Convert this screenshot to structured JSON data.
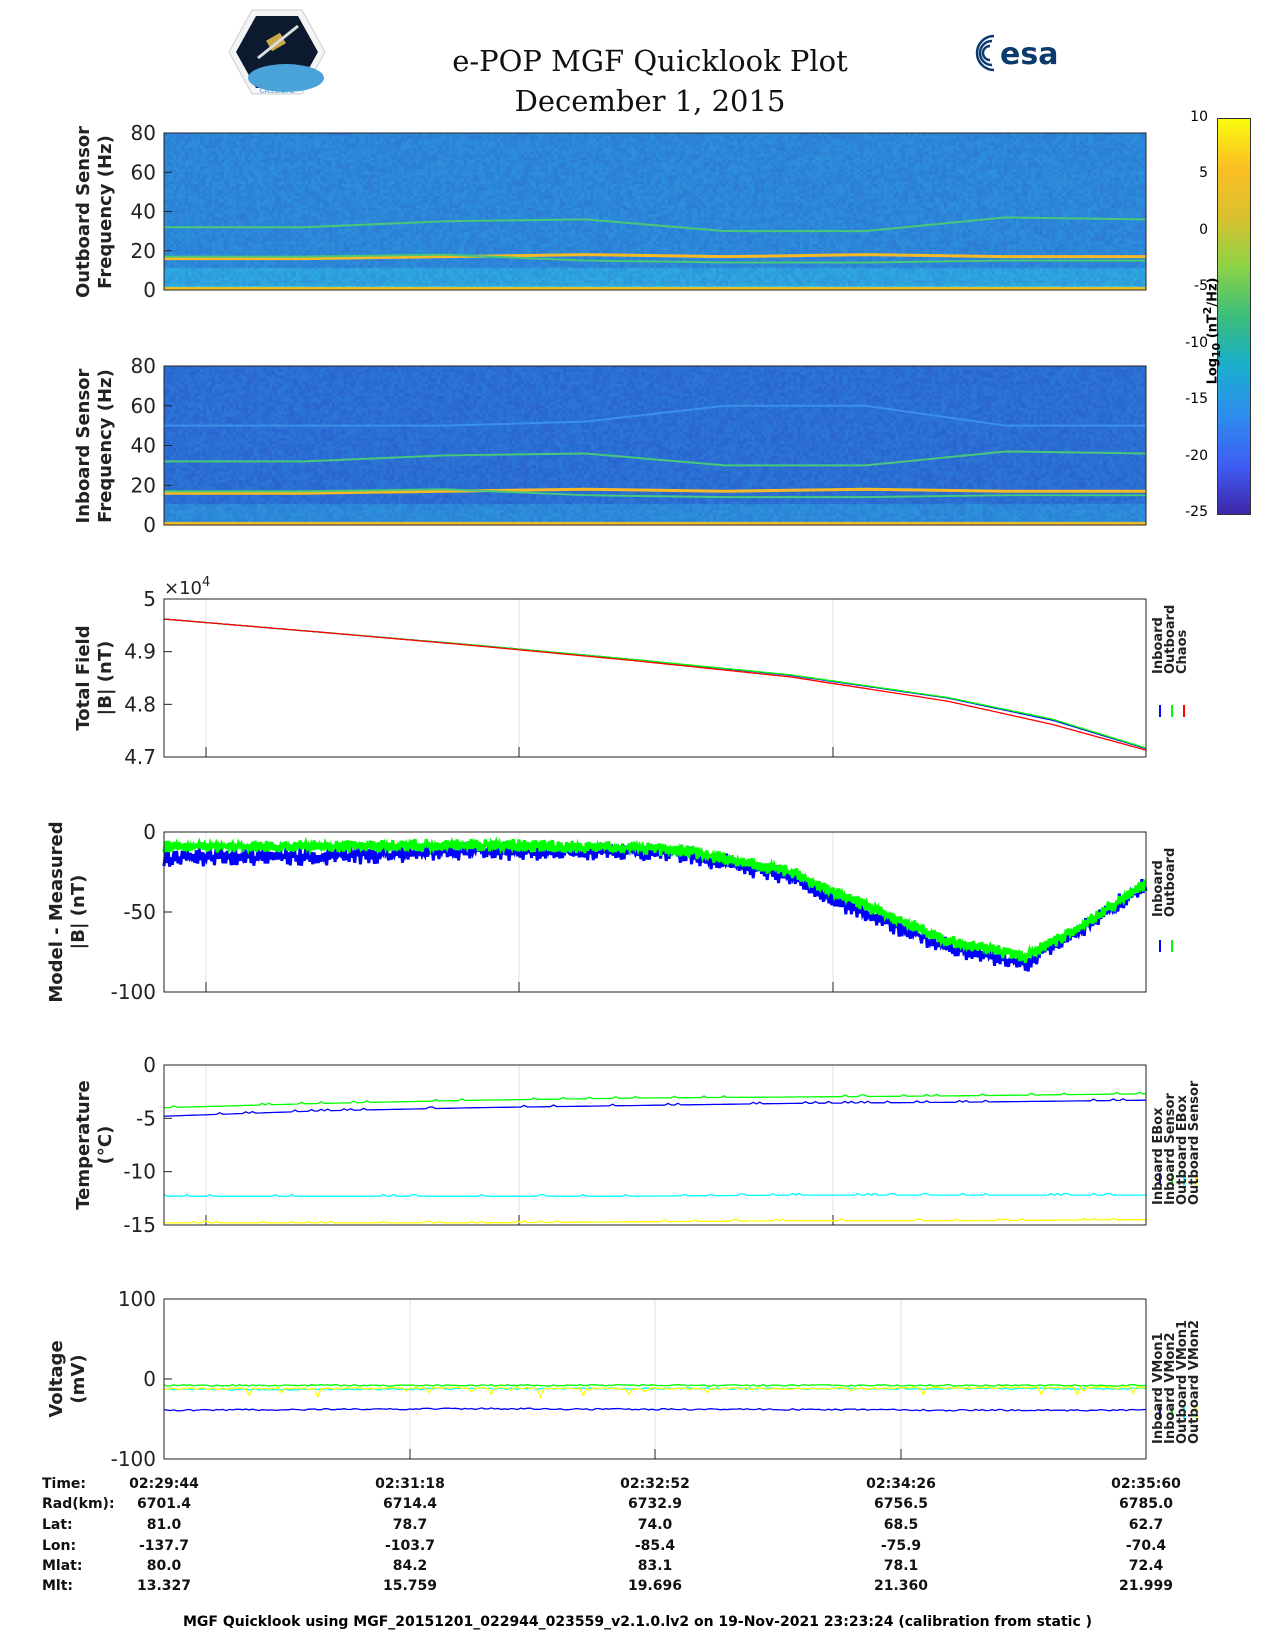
{
  "header": {
    "title": "e-POP MGF Quicklook Plot",
    "date": "December 1, 2015",
    "logo_left": "CASSIOPE",
    "logo_right": "esa"
  },
  "colorbar": {
    "label": "Log10 (nT^2/Hz)",
    "label_main": "Log",
    "label_sub": "10",
    "label_rest": " (nT",
    "label_sup": "2",
    "label_end": "/Hz)",
    "ticks": [
      "10",
      "5",
      "0",
      "-5",
      "-10",
      "-15",
      "-20",
      "-25"
    ],
    "range": [
      -25,
      10
    ]
  },
  "chart_data": [
    {
      "type": "heatmap",
      "id": "outboard-spec",
      "ylabel": [
        "Outboard Sensor",
        "Frequency (Hz)"
      ],
      "ylim": [
        0,
        80
      ],
      "yticks": [
        "0",
        "20",
        "40",
        "60",
        "80"
      ],
      "tracks": [
        {
          "name": "f1",
          "freq": [
            16,
            16,
            17,
            18,
            17,
            18,
            17,
            17
          ]
        },
        {
          "name": "f2",
          "freq": [
            32,
            32,
            35,
            36,
            30,
            30,
            37,
            36
          ]
        },
        {
          "name": "f3",
          "freq": [
            17,
            17,
            18,
            15,
            14,
            14,
            15,
            15
          ]
        }
      ]
    },
    {
      "type": "heatmap",
      "id": "inboard-spec",
      "ylabel": [
        "Inboard Sensor",
        "Frequency (Hz)"
      ],
      "ylim": [
        0,
        80
      ],
      "yticks": [
        "0",
        "20",
        "40",
        "60",
        "80"
      ],
      "tracks": [
        {
          "name": "f1",
          "freq": [
            16,
            16,
            17,
            18,
            17,
            18,
            17,
            17
          ]
        },
        {
          "name": "f2",
          "freq": [
            32,
            32,
            35,
            36,
            30,
            30,
            37,
            36
          ]
        },
        {
          "name": "f3",
          "freq": [
            17,
            17,
            18,
            15,
            14,
            14,
            15,
            15
          ]
        },
        {
          "name": "f4",
          "freq": [
            50,
            50,
            50,
            52,
            60,
            60,
            50,
            50
          ]
        }
      ]
    },
    {
      "type": "line",
      "id": "total-field",
      "ylabel": [
        "Total Field",
        "|B| (nT)"
      ],
      "ylim": [
        4.7,
        5.0
      ],
      "yticks": [
        "4.7",
        "4.8",
        "4.9",
        "5"
      ],
      "exponent": "×10",
      "exponent_power": "4",
      "xlim": [
        0,
        376
      ],
      "x": [
        0,
        60,
        120,
        180,
        240,
        300,
        340,
        376
      ],
      "series": [
        {
          "name": "Inboard",
          "color": "#0000ff",
          "values": [
            4.962,
            4.937,
            4.912,
            4.885,
            4.855,
            4.812,
            4.77,
            4.716
          ]
        },
        {
          "name": "Outboard",
          "color": "#00ff00",
          "values": [
            4.962,
            4.937,
            4.912,
            4.885,
            4.856,
            4.813,
            4.772,
            4.717
          ]
        },
        {
          "name": "Chaos",
          "color": "#ff0000",
          "values": [
            4.962,
            4.937,
            4.911,
            4.883,
            4.852,
            4.806,
            4.762,
            4.713
          ]
        }
      ]
    },
    {
      "type": "line",
      "id": "model-minus-measured",
      "ylabel": [
        "Model - Measured",
        "|B| (nT)"
      ],
      "ylim": [
        -100,
        0
      ],
      "yticks": [
        "-100",
        "-50",
        "0"
      ],
      "xlim": [
        0,
        376
      ],
      "x": [
        0,
        60,
        120,
        180,
        200,
        240,
        260,
        300,
        330,
        350,
        376
      ],
      "series": [
        {
          "name": "Inboard",
          "color": "#0000ff",
          "values": [
            -16,
            -15,
            -12,
            -12,
            -14,
            -28,
            -45,
            -72,
            -82,
            -62,
            -33
          ]
        },
        {
          "name": "Outboard",
          "color": "#00ff00",
          "values": [
            -9,
            -9,
            -8,
            -10,
            -12,
            -25,
            -40,
            -68,
            -78,
            -60,
            -32
          ]
        }
      ]
    },
    {
      "type": "line",
      "id": "temperature",
      "ylabel": [
        "Temperature",
        "(°C)"
      ],
      "ylim": [
        -15,
        0
      ],
      "yticks": [
        "-15",
        "-10",
        "-5",
        "0"
      ],
      "xlim": [
        0,
        376
      ],
      "x": [
        0,
        60,
        120,
        180,
        240,
        300,
        376
      ],
      "series": [
        {
          "name": "Inboard EBox",
          "color": "#0000ff",
          "values": [
            -4.8,
            -4.3,
            -4.0,
            -3.8,
            -3.6,
            -3.5,
            -3.3
          ]
        },
        {
          "name": "Inboard Sensor",
          "color": "#00ff00",
          "values": [
            -4.0,
            -3.6,
            -3.3,
            -3.1,
            -3.0,
            -2.9,
            -2.7
          ]
        },
        {
          "name": "Outboard EBox",
          "color": "#00ffff",
          "values": [
            -12.3,
            -12.3,
            -12.3,
            -12.3,
            -12.2,
            -12.2,
            -12.2
          ]
        },
        {
          "name": "Outboard Sensor",
          "color": "#ffff00",
          "values": [
            -14.8,
            -14.8,
            -14.8,
            -14.7,
            -14.6,
            -14.6,
            -14.5
          ]
        }
      ]
    },
    {
      "type": "line",
      "id": "voltage",
      "ylabel": [
        "Voltage",
        "(mV)"
      ],
      "ylim": [
        -100,
        100
      ],
      "yticks": [
        "-100",
        "0",
        "100"
      ],
      "xlim": [
        0,
        376
      ],
      "x": [
        0,
        60,
        120,
        180,
        240,
        300,
        376
      ],
      "series": [
        {
          "name": "Inboard VMon1",
          "color": "#0000ff",
          "values": [
            -39,
            -38,
            -37,
            -38,
            -38,
            -39,
            -39
          ]
        },
        {
          "name": "Inboard VMon2",
          "color": "#00ff00",
          "values": [
            -8,
            -8,
            -8,
            -8,
            -8,
            -8,
            -8
          ]
        },
        {
          "name": "Outboard VMon1",
          "color": "#00ffff",
          "values": [
            -13,
            -13,
            -12,
            -12,
            -12,
            -12,
            -12
          ]
        },
        {
          "name": "Outboard VMon2",
          "color": "#ffff00",
          "values": [
            -12,
            -12,
            -11,
            -12,
            -12,
            -11,
            -10
          ]
        }
      ]
    }
  ],
  "table": {
    "labels": [
      "Time:",
      "Rad(km):",
      "Lat:",
      "Lon:",
      "Mlat:",
      "Mlt:"
    ],
    "columns": [
      [
        "02:29:44",
        "6701.4",
        "81.0",
        "-137.7",
        "80.0",
        "13.327"
      ],
      [
        "02:31:18",
        "6714.4",
        "78.7",
        "-103.7",
        "84.2",
        "15.759"
      ],
      [
        "02:32:52",
        "6732.9",
        "74.0",
        "-85.4",
        "83.1",
        "19.696"
      ],
      [
        "02:34:26",
        "6756.5",
        "68.5",
        "-75.9",
        "78.1",
        "21.360"
      ],
      [
        "02:35:60",
        "6785.0",
        "62.7",
        "-70.4",
        "72.4",
        "21.999"
      ]
    ]
  },
  "footer": "MGF Quicklook using MGF_20151201_022944_023559_v2.1.0.lv2 on 19-Nov-2021 23:23:24 (calibration from static )"
}
